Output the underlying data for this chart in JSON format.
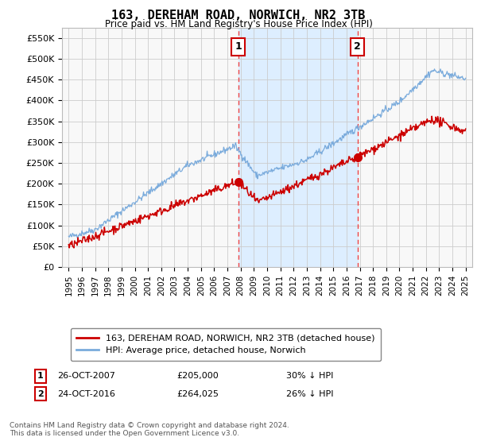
{
  "title": "163, DEREHAM ROAD, NORWICH, NR2 3TB",
  "subtitle": "Price paid vs. HM Land Registry's House Price Index (HPI)",
  "ylabel_ticks": [
    "£0",
    "£50K",
    "£100K",
    "£150K",
    "£200K",
    "£250K",
    "£300K",
    "£350K",
    "£400K",
    "£450K",
    "£500K",
    "£550K"
  ],
  "ytick_values": [
    0,
    50000,
    100000,
    150000,
    200000,
    250000,
    300000,
    350000,
    400000,
    450000,
    500000,
    550000
  ],
  "ylim": [
    0,
    575000
  ],
  "hpi_color": "#7aabdc",
  "price_color": "#cc0000",
  "vline_color": "#ee4444",
  "shade_color": "#ddeeff",
  "annotation_bg": "white",
  "annotation_border": "#cc0000",
  "grid_color": "#cccccc",
  "background_color": "#f8f8f8",
  "sale1_x": 2007.82,
  "sale1_y": 205000,
  "sale1_label": "1",
  "sale1_date": "26-OCT-2007",
  "sale1_price": "£205,000",
  "sale1_hpi": "30% ↓ HPI",
  "sale2_x": 2016.82,
  "sale2_y": 264025,
  "sale2_label": "2",
  "sale2_date": "24-OCT-2016",
  "sale2_price": "£264,025",
  "sale2_hpi": "26% ↓ HPI",
  "legend_line1": "163, DEREHAM ROAD, NORWICH, NR2 3TB (detached house)",
  "legend_line2": "HPI: Average price, detached house, Norwich",
  "footnote": "Contains HM Land Registry data © Crown copyright and database right 2024.\nThis data is licensed under the Open Government Licence v3.0.",
  "xmin": 1994.5,
  "xmax": 2025.5
}
